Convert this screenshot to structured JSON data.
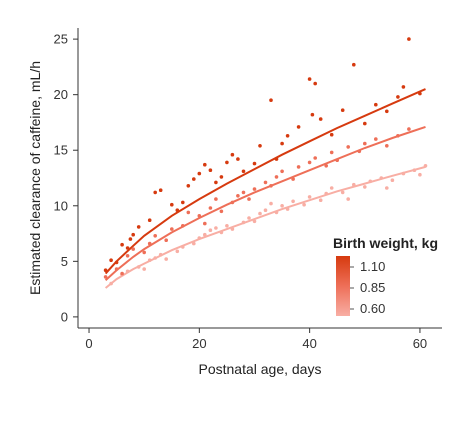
{
  "chart_data": {
    "type": "scatter",
    "xlabel": "Postnatal age, days",
    "ylabel": "Estimated clearance of caffeine, mL/h",
    "xlim": [
      -2,
      64
    ],
    "ylim": [
      -1,
      26
    ],
    "xticks": [
      0,
      20,
      40,
      60
    ],
    "yticks": [
      0,
      5,
      10,
      15,
      20,
      25
    ],
    "grid": false,
    "legend": {
      "title": "Birth weight, kg",
      "placement": "right-center",
      "labels": [
        "1.10",
        "0.85",
        "0.60"
      ],
      "colors": [
        "#d63a0f",
        "#ee6f58",
        "#f8aea4"
      ]
    },
    "series": [
      {
        "name": "1.10",
        "color": "#d63a0f",
        "curve": [
          [
            3,
            3.9
          ],
          [
            5,
            5.0
          ],
          [
            8,
            6.4
          ],
          [
            10,
            7.3
          ],
          [
            15,
            9.1
          ],
          [
            20,
            10.6
          ],
          [
            25,
            12.0
          ],
          [
            30,
            13.3
          ],
          [
            35,
            14.6
          ],
          [
            40,
            15.8
          ],
          [
            45,
            17.0
          ],
          [
            50,
            18.1
          ],
          [
            55,
            19.2
          ],
          [
            61,
            20.5
          ]
        ],
        "points": [
          [
            3,
            4.2
          ],
          [
            4,
            5.1
          ],
          [
            5,
            4.9
          ],
          [
            6,
            6.5
          ],
          [
            7,
            6.2
          ],
          [
            7.5,
            7.0
          ],
          [
            8,
            7.4
          ],
          [
            9,
            8.1
          ],
          [
            11,
            8.7
          ],
          [
            12,
            11.2
          ],
          [
            13,
            11.4
          ],
          [
            15,
            10.1
          ],
          [
            16,
            9.6
          ],
          [
            17,
            10.3
          ],
          [
            18,
            11.8
          ],
          [
            19,
            12.4
          ],
          [
            20,
            12.9
          ],
          [
            21,
            13.7
          ],
          [
            22,
            13.2
          ],
          [
            23,
            12.1
          ],
          [
            24,
            12.6
          ],
          [
            25,
            13.9
          ],
          [
            26,
            14.6
          ],
          [
            27,
            14.2
          ],
          [
            28,
            13.1
          ],
          [
            30,
            13.8
          ],
          [
            31,
            15.4
          ],
          [
            33,
            19.5
          ],
          [
            34,
            14.2
          ],
          [
            35,
            15.6
          ],
          [
            36,
            16.3
          ],
          [
            38,
            17.1
          ],
          [
            40,
            21.4
          ],
          [
            41,
            21.0
          ],
          [
            40.5,
            18.2
          ],
          [
            42,
            17.8
          ],
          [
            44,
            16.4
          ],
          [
            46,
            18.6
          ],
          [
            48,
            22.7
          ],
          [
            50,
            17.4
          ],
          [
            52,
            19.1
          ],
          [
            54,
            18.5
          ],
          [
            56,
            19.8
          ],
          [
            57,
            20.7
          ],
          [
            58,
            25.0
          ],
          [
            60,
            20.1
          ]
        ]
      },
      {
        "name": "0.85",
        "color": "#ee6f58",
        "curve": [
          [
            3,
            3.3
          ],
          [
            5,
            4.2
          ],
          [
            8,
            5.4
          ],
          [
            10,
            6.1
          ],
          [
            15,
            7.6
          ],
          [
            20,
            8.9
          ],
          [
            25,
            10.1
          ],
          [
            30,
            11.2
          ],
          [
            35,
            12.2
          ],
          [
            40,
            13.2
          ],
          [
            45,
            14.2
          ],
          [
            50,
            15.2
          ],
          [
            55,
            16.1
          ],
          [
            61,
            17.1
          ]
        ],
        "points": [
          [
            3,
            3.6
          ],
          [
            5,
            4.3
          ],
          [
            6,
            3.9
          ],
          [
            7,
            5.5
          ],
          [
            8,
            6.1
          ],
          [
            10,
            5.8
          ],
          [
            11,
            6.6
          ],
          [
            12,
            7.3
          ],
          [
            14,
            6.9
          ],
          [
            15,
            7.9
          ],
          [
            17,
            8.2
          ],
          [
            18,
            9.4
          ],
          [
            20,
            9.1
          ],
          [
            21,
            8.4
          ],
          [
            22,
            9.8
          ],
          [
            23,
            10.6
          ],
          [
            24,
            9.5
          ],
          [
            26,
            10.3
          ],
          [
            27,
            10.9
          ],
          [
            28,
            11.2
          ],
          [
            29,
            10.6
          ],
          [
            30,
            11.5
          ],
          [
            32,
            12.1
          ],
          [
            33,
            11.8
          ],
          [
            34,
            12.6
          ],
          [
            35,
            13.1
          ],
          [
            37,
            12.4
          ],
          [
            38,
            13.5
          ],
          [
            40,
            13.9
          ],
          [
            41,
            14.3
          ],
          [
            43,
            13.6
          ],
          [
            44,
            14.8
          ],
          [
            45,
            14.1
          ],
          [
            47,
            15.3
          ],
          [
            49,
            14.9
          ],
          [
            50,
            15.6
          ],
          [
            52,
            16.0
          ],
          [
            54,
            15.4
          ],
          [
            56,
            16.3
          ],
          [
            58,
            16.9
          ]
        ]
      },
      {
        "name": "0.60",
        "color": "#f8aea4",
        "curve": [
          [
            3,
            2.6
          ],
          [
            5,
            3.4
          ],
          [
            8,
            4.3
          ],
          [
            10,
            4.8
          ],
          [
            15,
            6.0
          ],
          [
            20,
            7.0
          ],
          [
            25,
            7.9
          ],
          [
            30,
            8.8
          ],
          [
            35,
            9.7
          ],
          [
            40,
            10.5
          ],
          [
            45,
            11.3
          ],
          [
            50,
            12.0
          ],
          [
            55,
            12.7
          ],
          [
            61,
            13.5
          ]
        ],
        "points": [
          [
            4,
            3.0
          ],
          [
            6,
            3.8
          ],
          [
            7,
            4.1
          ],
          [
            9,
            4.5
          ],
          [
            10,
            4.3
          ],
          [
            11,
            5.1
          ],
          [
            12,
            5.3
          ],
          [
            13,
            5.6
          ],
          [
            14,
            5.2
          ],
          [
            16,
            5.9
          ],
          [
            17,
            6.3
          ],
          [
            19,
            6.6
          ],
          [
            20,
            7.1
          ],
          [
            21,
            7.4
          ],
          [
            22,
            7.8
          ],
          [
            23,
            8.0
          ],
          [
            24,
            7.6
          ],
          [
            25,
            8.2
          ],
          [
            26,
            7.9
          ],
          [
            28,
            8.5
          ],
          [
            29,
            8.9
          ],
          [
            30,
            8.6
          ],
          [
            31,
            9.3
          ],
          [
            32,
            9.6
          ],
          [
            33,
            10.2
          ],
          [
            34,
            9.4
          ],
          [
            35,
            10.0
          ],
          [
            36,
            9.7
          ],
          [
            37,
            10.4
          ],
          [
            39,
            10.1
          ],
          [
            40,
            10.8
          ],
          [
            42,
            10.5
          ],
          [
            43,
            11.1
          ],
          [
            44,
            11.6
          ],
          [
            46,
            11.2
          ],
          [
            47,
            10.6
          ],
          [
            48,
            11.9
          ],
          [
            50,
            11.7
          ],
          [
            51,
            12.2
          ],
          [
            53,
            12.5
          ],
          [
            54,
            11.6
          ],
          [
            55,
            12.3
          ],
          [
            57,
            12.9
          ],
          [
            59,
            13.2
          ],
          [
            60,
            12.8
          ],
          [
            61,
            13.6
          ]
        ]
      }
    ]
  }
}
